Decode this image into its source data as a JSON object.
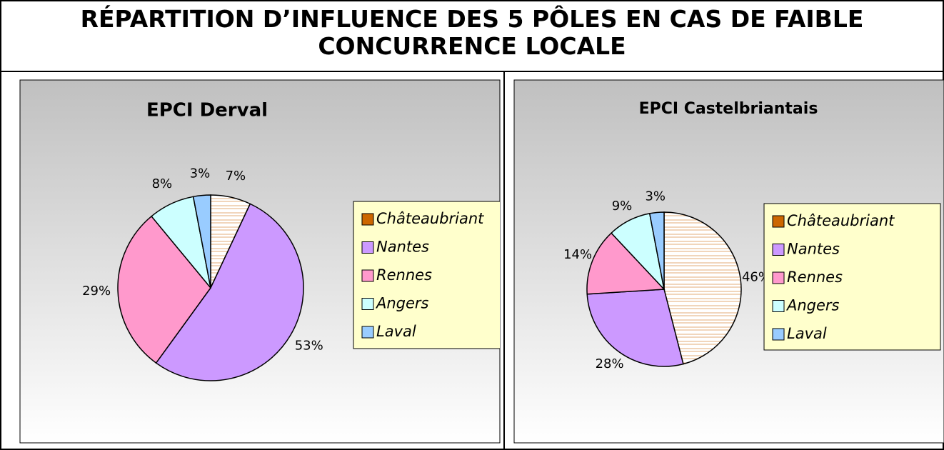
{
  "title": "RÉPARTITION D’INFLUENCE DES 5 PÔLES EN CAS DE FAIBLE CONCURRENCE LOCALE",
  "chart_data": [
    {
      "type": "pie",
      "title": "EPCI Derval",
      "categories": [
        "Châteaubriant",
        "Nantes",
        "Rennes",
        "Angers",
        "Laval"
      ],
      "values": [
        7,
        53,
        29,
        8,
        3
      ],
      "value_labels": [
        "7%",
        "53%",
        "29%",
        "8%",
        "3%"
      ],
      "colors": [
        "#cc6600",
        "#cc99ff",
        "#ff99cc",
        "#ccffff",
        "#99ccff"
      ]
    },
    {
      "type": "pie",
      "title": "EPCI Castelbriantais",
      "categories": [
        "Châteaubriant",
        "Nantes",
        "Rennes",
        "Angers",
        "Laval"
      ],
      "values": [
        46,
        28,
        14,
        9,
        3
      ],
      "value_labels": [
        "46%",
        "28%",
        "14%",
        "9%",
        "3%"
      ],
      "colors": [
        "#cc6600",
        "#cc99ff",
        "#ff99cc",
        "#ccffff",
        "#99ccff"
      ]
    }
  ]
}
